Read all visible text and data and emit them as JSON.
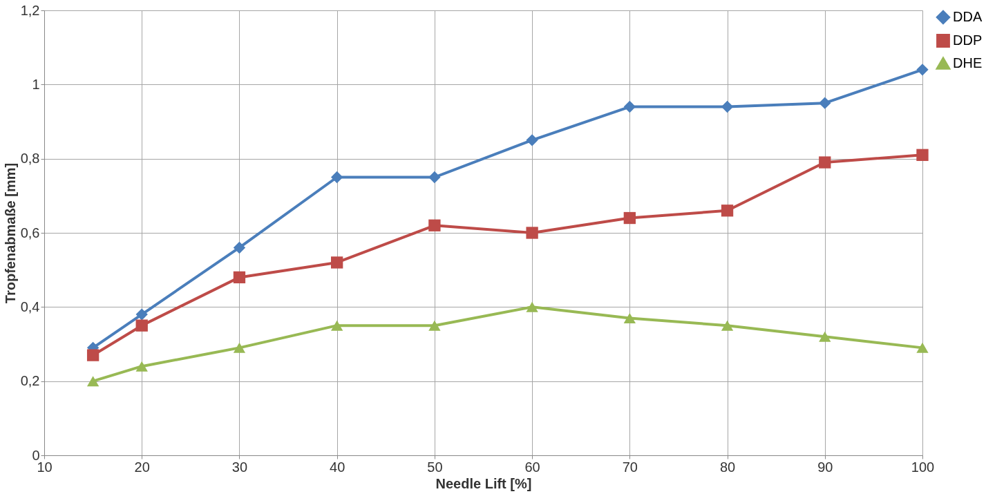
{
  "chart_data": {
    "type": "line",
    "xlabel": "Needle Lift [%]",
    "ylabel": "Tropfenabmaße  [mm]",
    "x": [
      15,
      20,
      30,
      40,
      50,
      60,
      70,
      80,
      90,
      100
    ],
    "series": [
      {
        "name": "DDA",
        "color": "#4a7ebb",
        "marker": "diamond",
        "values": [
          0.29,
          0.38,
          0.56,
          0.75,
          0.75,
          0.85,
          0.94,
          0.94,
          0.95,
          1.04
        ]
      },
      {
        "name": "DDP",
        "color": "#be4b48",
        "marker": "square",
        "values": [
          0.27,
          0.35,
          0.48,
          0.52,
          0.62,
          0.6,
          0.64,
          0.66,
          0.79,
          0.81
        ]
      },
      {
        "name": "DHE",
        "color": "#98b954",
        "marker": "triangle",
        "values": [
          0.2,
          0.24,
          0.29,
          0.35,
          0.35,
          0.4,
          0.37,
          0.35,
          0.32,
          0.29
        ]
      }
    ],
    "xlim": [
      10,
      100
    ],
    "xticks": [
      10,
      20,
      30,
      40,
      50,
      60,
      70,
      80,
      90,
      100
    ],
    "ylim": [
      0,
      1.2
    ],
    "yticks": [
      0,
      {
        "value": 0.2,
        "label": "0,2"
      },
      {
        "value": 0.4,
        "label": "0,4"
      },
      {
        "value": 0.6,
        "label": "0,6"
      },
      {
        "value": 0.8,
        "label": "0,8"
      },
      1,
      {
        "value": 1.2,
        "label": "1,2"
      }
    ],
    "grid": true,
    "legend": "right",
    "line_style": "solid"
  }
}
